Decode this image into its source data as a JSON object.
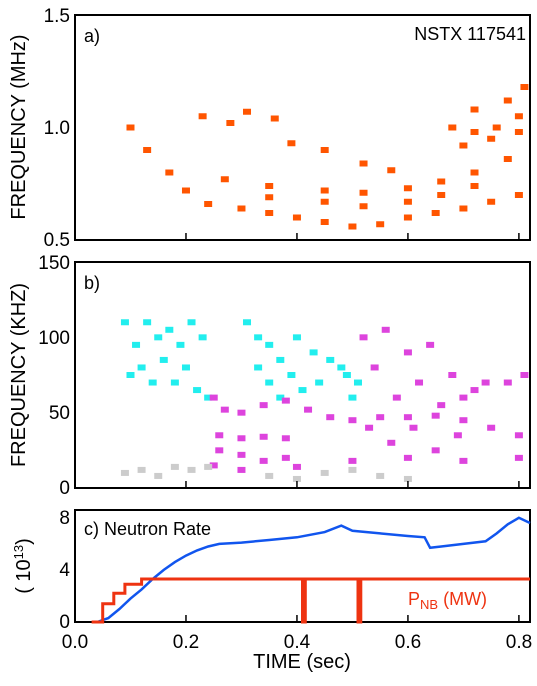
{
  "chart_data": [
    {
      "panel": "a)",
      "type": "scatter",
      "annotation": "NSTX 117541",
      "ylabel": "FREQUENCY (MHz)",
      "yticks": [
        "0.5",
        "1.0",
        "1.5"
      ],
      "ylim": [
        0.5,
        1.5
      ],
      "xlim": [
        0.0,
        0.82
      ],
      "grid": false,
      "series": [
        {
          "color": "#ff5500",
          "points": [
            [
              0.1,
              1.0
            ],
            [
              0.13,
              0.9
            ],
            [
              0.17,
              0.8
            ],
            [
              0.2,
              0.72
            ],
            [
              0.24,
              0.66
            ],
            [
              0.3,
              0.64
            ],
            [
              0.35,
              0.62
            ],
            [
              0.4,
              0.6
            ],
            [
              0.45,
              0.58
            ],
            [
              0.5,
              0.56
            ],
            [
              0.55,
              0.57
            ],
            [
              0.6,
              0.6
            ],
            [
              0.65,
              0.62
            ],
            [
              0.7,
              0.64
            ],
            [
              0.75,
              0.67
            ],
            [
              0.8,
              0.7
            ],
            [
              0.27,
              0.77
            ],
            [
              0.35,
              0.74
            ],
            [
              0.45,
              0.72
            ],
            [
              0.52,
              0.71
            ],
            [
              0.6,
              0.73
            ],
            [
              0.66,
              0.76
            ],
            [
              0.72,
              0.8
            ],
            [
              0.78,
              0.86
            ],
            [
              0.35,
              0.69
            ],
            [
              0.45,
              0.67
            ],
            [
              0.52,
              0.65
            ],
            [
              0.6,
              0.67
            ],
            [
              0.66,
              0.7
            ],
            [
              0.72,
              0.74
            ],
            [
              0.23,
              1.05
            ],
            [
              0.28,
              1.02
            ],
            [
              0.31,
              1.07
            ],
            [
              0.36,
              1.04
            ],
            [
              0.39,
              0.93
            ],
            [
              0.45,
              0.9
            ],
            [
              0.52,
              0.84
            ],
            [
              0.57,
              0.81
            ],
            [
              0.68,
              1.0
            ],
            [
              0.72,
              0.98
            ],
            [
              0.76,
              1.0
            ],
            [
              0.8,
              1.05
            ],
            [
              0.7,
              0.92
            ],
            [
              0.75,
              0.95
            ],
            [
              0.8,
              0.98
            ],
            [
              0.72,
              1.08
            ],
            [
              0.78,
              1.12
            ],
            [
              0.81,
              1.18
            ]
          ]
        }
      ]
    },
    {
      "panel": "b)",
      "type": "scatter",
      "ylabel": "FREQUENCY (KHZ)",
      "yticks": [
        "0",
        "50",
        "100",
        "150"
      ],
      "ylim": [
        0,
        150
      ],
      "xlim": [
        0.0,
        0.82
      ],
      "grid": false,
      "series": [
        {
          "color": "#22eeee",
          "points": [
            [
              0.09,
              110
            ],
            [
              0.1,
              75
            ],
            [
              0.11,
              95
            ],
            [
              0.12,
              80
            ],
            [
              0.13,
              110
            ],
            [
              0.14,
              70
            ],
            [
              0.15,
              100
            ],
            [
              0.16,
              85
            ],
            [
              0.17,
              105
            ],
            [
              0.18,
              70
            ],
            [
              0.19,
              95
            ],
            [
              0.2,
              80
            ],
            [
              0.21,
              110
            ],
            [
              0.22,
              65
            ],
            [
              0.23,
              100
            ],
            [
              0.24,
              60
            ],
            [
              0.31,
              110
            ],
            [
              0.33,
              100
            ],
            [
              0.35,
              95
            ],
            [
              0.37,
              85
            ],
            [
              0.4,
              100
            ],
            [
              0.43,
              90
            ],
            [
              0.46,
              85
            ],
            [
              0.49,
              75
            ],
            [
              0.51,
              70
            ],
            [
              0.33,
              80
            ],
            [
              0.35,
              70
            ],
            [
              0.37,
              60
            ],
            [
              0.39,
              75
            ],
            [
              0.41,
              65
            ],
            [
              0.44,
              70
            ],
            [
              0.48,
              80
            ],
            [
              0.5,
              60
            ]
          ]
        },
        {
          "color": "#dd44dd",
          "points": [
            [
              0.25,
              60
            ],
            [
              0.27,
              52
            ],
            [
              0.3,
              50
            ],
            [
              0.34,
              55
            ],
            [
              0.38,
              58
            ],
            [
              0.42,
              52
            ],
            [
              0.46,
              47
            ],
            [
              0.5,
              45
            ],
            [
              0.55,
              47
            ],
            [
              0.6,
              47
            ],
            [
              0.65,
              48
            ],
            [
              0.7,
              45
            ],
            [
              0.75,
              40
            ],
            [
              0.8,
              35
            ],
            [
              0.26,
              35
            ],
            [
              0.3,
              33
            ],
            [
              0.34,
              34
            ],
            [
              0.38,
              33
            ],
            [
              0.26,
              25
            ],
            [
              0.3,
              22
            ],
            [
              0.34,
              18
            ],
            [
              0.38,
              20
            ],
            [
              0.25,
              15
            ],
            [
              0.3,
              12
            ],
            [
              0.4,
              14
            ],
            [
              0.5,
              18
            ],
            [
              0.6,
              20
            ],
            [
              0.7,
              18
            ],
            [
              0.8,
              20
            ],
            [
              0.52,
              100
            ],
            [
              0.54,
              80
            ],
            [
              0.56,
              105
            ],
            [
              0.58,
              60
            ],
            [
              0.6,
              90
            ],
            [
              0.62,
              70
            ],
            [
              0.64,
              95
            ],
            [
              0.66,
              55
            ],
            [
              0.68,
              75
            ],
            [
              0.7,
              60
            ],
            [
              0.72,
              65
            ],
            [
              0.74,
              70
            ],
            [
              0.78,
              70
            ],
            [
              0.81,
              75
            ],
            [
              0.53,
              40
            ],
            [
              0.57,
              30
            ],
            [
              0.61,
              40
            ],
            [
              0.65,
              25
            ],
            [
              0.69,
              35
            ]
          ]
        },
        {
          "color": "#cccccc",
          "points": [
            [
              0.09,
              10
            ],
            [
              0.12,
              12
            ],
            [
              0.15,
              8
            ],
            [
              0.18,
              14
            ],
            [
              0.21,
              12
            ],
            [
              0.24,
              14
            ],
            [
              0.35,
              8
            ],
            [
              0.4,
              6
            ],
            [
              0.45,
              10
            ],
            [
              0.5,
              12
            ],
            [
              0.55,
              8
            ],
            [
              0.6,
              6
            ]
          ]
        }
      ]
    },
    {
      "panel": "c)",
      "type": "line",
      "ylabel": "( 10^13 )",
      "yticks": [
        "0",
        "4",
        "8"
      ],
      "ylim": [
        0,
        8.6
      ],
      "xlim": [
        0.0,
        0.82
      ],
      "xticks": [
        "0.0",
        "0.2",
        "0.4",
        "0.6",
        "0.8"
      ],
      "xlabel": "TIME (sec)",
      "grid": false,
      "series": [
        {
          "name": "Neutron Rate",
          "color": "#1155ee",
          "x": [
            0.04,
            0.06,
            0.08,
            0.1,
            0.12,
            0.14,
            0.16,
            0.18,
            0.2,
            0.22,
            0.24,
            0.26,
            0.3,
            0.35,
            0.4,
            0.45,
            0.48,
            0.5,
            0.55,
            0.6,
            0.63,
            0.64,
            0.66,
            0.7,
            0.74,
            0.76,
            0.78,
            0.8,
            0.82
          ],
          "y": [
            0,
            0.3,
            1.0,
            1.8,
            2.5,
            3.3,
            4.0,
            4.6,
            5.1,
            5.5,
            5.8,
            6.0,
            6.1,
            6.3,
            6.5,
            6.9,
            7.4,
            7.0,
            6.8,
            6.6,
            6.5,
            5.7,
            5.8,
            6.0,
            6.2,
            6.8,
            7.5,
            8.0,
            7.6
          ]
        },
        {
          "name": "P_NB (MW)",
          "color": "#ee3311",
          "x": [
            0.03,
            0.05,
            0.05,
            0.07,
            0.07,
            0.09,
            0.09,
            0.12,
            0.12,
            0.41,
            0.41,
            0.415,
            0.415,
            0.51,
            0.51,
            0.515,
            0.515,
            0.82
          ],
          "y": [
            0,
            0,
            1.4,
            1.4,
            2.2,
            2.2,
            2.9,
            2.9,
            3.3,
            3.3,
            0,
            0,
            3.3,
            3.3,
            0,
            0,
            3.3,
            3.3
          ]
        }
      ],
      "labels": {
        "neutron": "c) Neutron Rate",
        "pnb_main": "P",
        "pnb_sub": "NB",
        "pnb_unit": " (MW)"
      }
    }
  ]
}
